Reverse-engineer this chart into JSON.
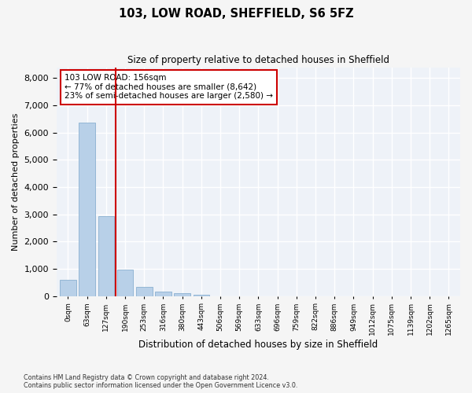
{
  "title1": "103, LOW ROAD, SHEFFIELD, S6 5FZ",
  "title2": "Size of property relative to detached houses in Sheffield",
  "xlabel": "Distribution of detached houses by size in Sheffield",
  "ylabel": "Number of detached properties",
  "bar_color": "#b8d0e8",
  "bar_edge_color": "#8ab0d0",
  "vline_color": "#cc0000",
  "vline_x": 2.5,
  "annotation_text": "103 LOW ROAD: 156sqm\n← 77% of detached houses are smaller (8,642)\n23% of semi-detached houses are larger (2,580) →",
  "annotation_box_color": "#cc0000",
  "footnote": "Contains HM Land Registry data © Crown copyright and database right 2024.\nContains public sector information licensed under the Open Government Licence v3.0.",
  "bins": [
    "0sqm",
    "63sqm",
    "127sqm",
    "190sqm",
    "253sqm",
    "316sqm",
    "380sqm",
    "443sqm",
    "506sqm",
    "569sqm",
    "633sqm",
    "696sqm",
    "759sqm",
    "822sqm",
    "886sqm",
    "949sqm",
    "1012sqm",
    "1075sqm",
    "1139sqm",
    "1202sqm",
    "1265sqm"
  ],
  "values": [
    600,
    6380,
    2920,
    970,
    350,
    155,
    95,
    60,
    0,
    0,
    0,
    0,
    0,
    0,
    0,
    0,
    0,
    0,
    0,
    0
  ],
  "ylim": [
    0,
    8400
  ],
  "yticks": [
    0,
    1000,
    2000,
    3000,
    4000,
    5000,
    6000,
    7000,
    8000
  ],
  "background_color": "#eef2f8",
  "grid_color": "#ffffff",
  "figsize": [
    6.0,
    5.0
  ],
  "dpi": 100
}
